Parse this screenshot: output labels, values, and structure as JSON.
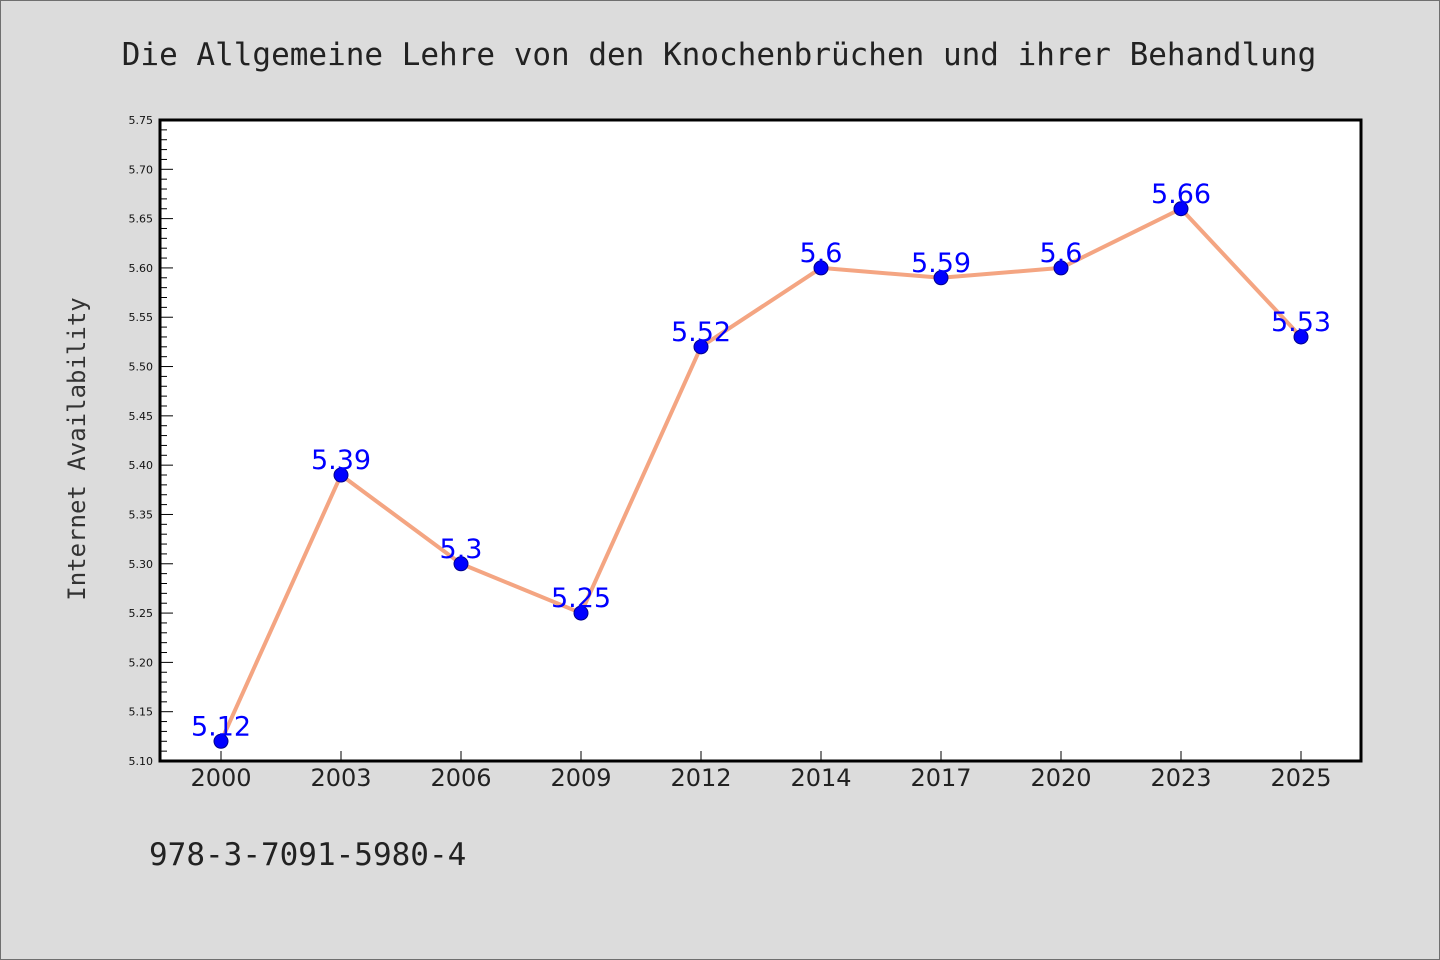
{
  "chart_data": {
    "type": "line",
    "title": "Die Allgemeine Lehre von den Knochenbrüchen und ihrer Behandlung",
    "xlabel": "",
    "ylabel": "Internet Availability",
    "categories": [
      "2000",
      "2003",
      "2006",
      "2009",
      "2012",
      "2014",
      "2017",
      "2020",
      "2023",
      "2025"
    ],
    "series": [
      {
        "values": [
          5.12,
          5.39,
          5.3,
          5.25,
          5.52,
          5.6,
          5.59,
          5.6,
          5.66,
          5.53
        ],
        "labels": [
          "5.12",
          "5.39",
          "5.3",
          "5.25",
          "5.52",
          "5.6",
          "5.59",
          "5.6",
          "5.66",
          "5.53"
        ],
        "line_color": "#f4a582",
        "marker_color": "#0000ff"
      }
    ],
    "ylim": [
      5.1,
      5.75
    ],
    "yticks": [
      "5.10",
      "5.15",
      "5.20",
      "5.25",
      "5.30",
      "5.35",
      "5.40",
      "5.45",
      "5.50",
      "5.55",
      "5.60",
      "5.65",
      "5.70",
      "5.75"
    ],
    "grid": false,
    "legend": "none"
  },
  "footer_text": "978-3-7091-5980-4",
  "colors": {
    "background": "#dcdcdc",
    "plot_background": "#ffffff",
    "axis": "#000000",
    "line": "#f4a582",
    "marker": "#0000ff",
    "label": "#0000ff"
  }
}
